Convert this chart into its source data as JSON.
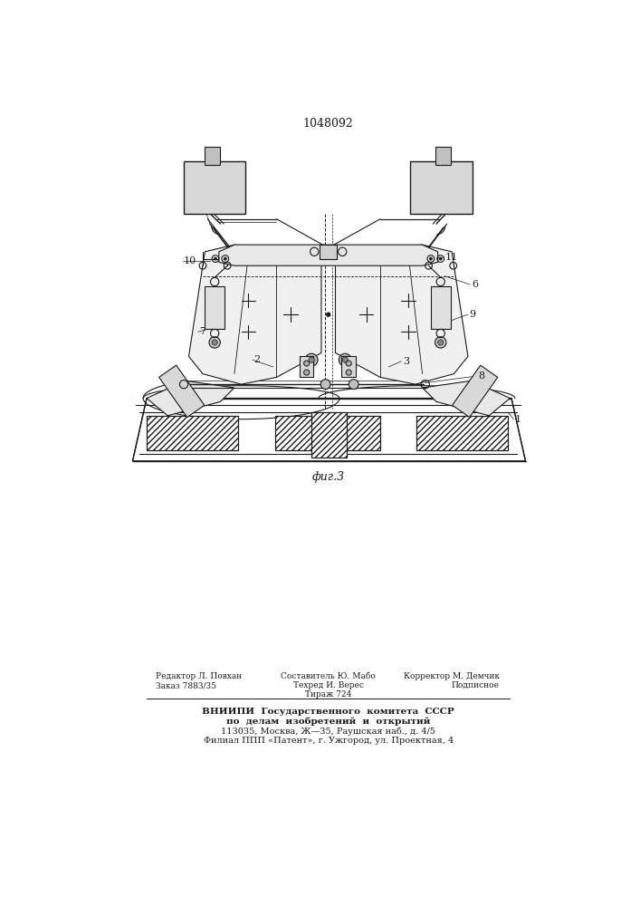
{
  "title": "1048092",
  "fig_label": "фиг.3",
  "background_color": "#ffffff",
  "line_color": "#1a1a1a",
  "footer_bold": "ВНИИПИ  Государственного  комитета  СССР",
  "footer_line2": "по  делам  изобретений  и  открытий",
  "footer_line3": "113035, Москва, Ж—35, Раушская наб., д. 4/5",
  "footer_line4": "Филиал ППП «Патент», г. Ужгород, ул. Проектная, 4"
}
